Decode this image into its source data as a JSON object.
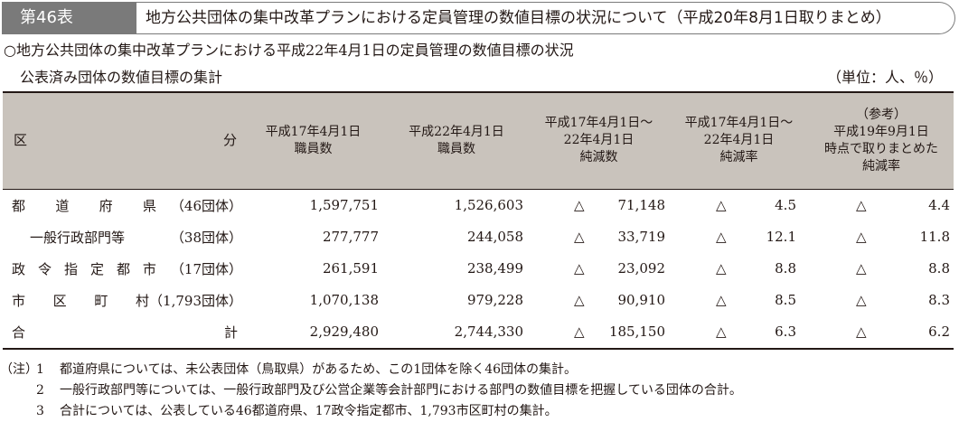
{
  "header": {
    "table_no": "第46表",
    "title": "地方公共団体の集中改革プランにおける定員管理の数値目標の状況について（平成20年8月1日取りまとめ）"
  },
  "caption": "○地方公共団体の集中改革プランにおける平成22年4月1日の定員管理の数値目標の状況",
  "subcaption": "公表済み団体の数値目標の集計",
  "unit": "（単位：人、％）",
  "table": {
    "columns": {
      "kubun_left": "区",
      "kubun_right": "分",
      "c1": [
        "平成17年4月1日",
        "職員数"
      ],
      "c2": [
        "平成22年4月1日",
        "職員数"
      ],
      "c3": [
        "平成17年4月1日～",
        "22年4月1日",
        "純減数"
      ],
      "c4": [
        "平成17年4月1日～",
        "22年4月1日",
        "純減率"
      ],
      "c5": [
        "（参考）",
        "平成19年9月1日",
        "時点で取りまとめた",
        "純減率"
      ]
    },
    "triangle": "△",
    "rows": [
      {
        "label": [
          "都",
          "道",
          "府",
          "県"
        ],
        "suffix": "（46団体）",
        "c1": "1,597,751",
        "c2": "1,526,603",
        "c3": "71,148",
        "c4": "4.5",
        "c5": "4.4"
      },
      {
        "label_text": "一般行政部門等",
        "suffix": "（38団体）",
        "c1": "277,777",
        "c2": "244,058",
        "c3": "33,719",
        "c4": "12.1",
        "c5": "11.8"
      },
      {
        "label": [
          "政",
          "令",
          "指",
          "定",
          "都",
          "市"
        ],
        "suffix": "（17団体）",
        "c1": "261,591",
        "c2": "238,499",
        "c3": "23,092",
        "c4": "8.8",
        "c5": "8.8"
      },
      {
        "label": [
          "市",
          "区",
          "町",
          "村"
        ],
        "suffix": "（1,793団体）",
        "c1": "1,070,138",
        "c2": "979,228",
        "c3": "90,910",
        "c4": "8.5",
        "c5": "8.3"
      },
      {
        "label": [
          "合",
          "計"
        ],
        "suffix": "",
        "c1": "2,929,480",
        "c2": "2,744,330",
        "c3": "185,150",
        "c4": "6.3",
        "c5": "6.2"
      }
    ]
  },
  "notes": {
    "prefix": "（注）",
    "items": [
      {
        "no": "1",
        "text": "都道府県については、未公表団体（鳥取県）があるため、この1団体を除く46団体の集計。"
      },
      {
        "no": "2",
        "text": "一般行政部門等については、一般行政部門及び公営企業等会計部門における部門の数値目標を把握している団体の合計。"
      },
      {
        "no": "3",
        "text": "合計については、公表している46都道府県、17政令指定都市、1,793市区町村の集計。"
      }
    ]
  }
}
